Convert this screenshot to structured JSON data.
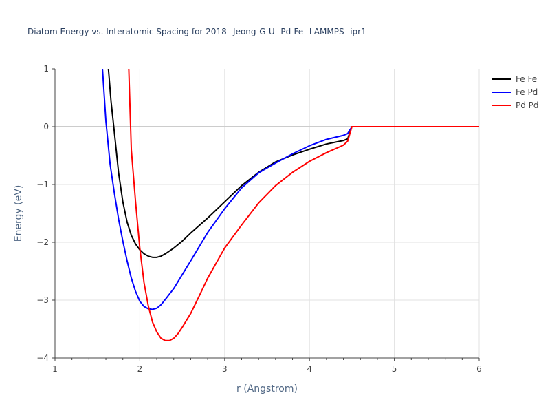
{
  "chart_data": {
    "type": "line",
    "title": "Diatom Energy vs. Interatomic Spacing for 2018--Jeong-G-U--Pd-Fe--LAMMPS--ipr1",
    "xlabel": "r (Angstrom)",
    "ylabel": "Energy (eV)",
    "xlim": [
      1,
      6
    ],
    "ylim": [
      -4,
      1
    ],
    "xticks": [
      1,
      2,
      3,
      4,
      5,
      6
    ],
    "yticks": [
      1,
      0,
      -1,
      -2,
      -3,
      -4
    ],
    "xtick_labels": [
      "1",
      "2",
      "3",
      "4",
      "5",
      "6"
    ],
    "ytick_labels": [
      "1",
      "0",
      "−1",
      "−2",
      "−3",
      "−4"
    ],
    "grid": true,
    "legend_position": "top-right",
    "series": [
      {
        "name": "Fe Fe",
        "color": "#000000",
        "x": [
          1.63,
          1.66,
          1.7,
          1.75,
          1.8,
          1.85,
          1.9,
          1.95,
          2.0,
          2.05,
          2.1,
          2.15,
          2.2,
          2.25,
          2.3,
          2.4,
          2.5,
          2.6,
          2.8,
          3.0,
          3.2,
          3.4,
          3.6,
          3.8,
          4.0,
          4.2,
          4.4,
          4.45,
          4.5,
          5.0,
          5.5,
          6.0
        ],
        "y": [
          1.0,
          0.45,
          -0.1,
          -0.8,
          -1.3,
          -1.65,
          -1.88,
          -2.03,
          -2.13,
          -2.2,
          -2.24,
          -2.26,
          -2.26,
          -2.24,
          -2.2,
          -2.1,
          -1.98,
          -1.84,
          -1.58,
          -1.3,
          -1.02,
          -0.79,
          -0.61,
          -0.49,
          -0.39,
          -0.3,
          -0.24,
          -0.21,
          0.0,
          0.0,
          0.0,
          0.0
        ]
      },
      {
        "name": "Fe Pd",
        "color": "#0000ff",
        "x": [
          1.56,
          1.6,
          1.65,
          1.7,
          1.75,
          1.8,
          1.85,
          1.9,
          1.95,
          2.0,
          2.05,
          2.1,
          2.15,
          2.2,
          2.25,
          2.3,
          2.4,
          2.5,
          2.6,
          2.8,
          3.0,
          3.2,
          3.4,
          3.6,
          3.8,
          4.0,
          4.2,
          4.4,
          4.45,
          4.5,
          5.0,
          5.5,
          6.0
        ],
        "y": [
          1.0,
          0.1,
          -0.65,
          -1.15,
          -1.6,
          -1.98,
          -2.32,
          -2.62,
          -2.85,
          -3.02,
          -3.11,
          -3.15,
          -3.16,
          -3.14,
          -3.08,
          -2.99,
          -2.8,
          -2.56,
          -2.32,
          -1.83,
          -1.42,
          -1.06,
          -0.8,
          -0.63,
          -0.47,
          -0.33,
          -0.22,
          -0.15,
          -0.12,
          0.0,
          0.0,
          0.0,
          0.0
        ]
      },
      {
        "name": "Pd Pd",
        "color": "#ff0000",
        "x": [
          1.87,
          1.9,
          1.95,
          2.0,
          2.05,
          2.1,
          2.15,
          2.2,
          2.25,
          2.3,
          2.35,
          2.4,
          2.45,
          2.5,
          2.6,
          2.7,
          2.8,
          3.0,
          3.2,
          3.4,
          3.6,
          3.8,
          4.0,
          4.2,
          4.4,
          4.45,
          4.5,
          5.0,
          5.5,
          6.0
        ],
        "y": [
          1.0,
          -0.4,
          -1.3,
          -2.1,
          -2.7,
          -3.1,
          -3.38,
          -3.55,
          -3.66,
          -3.7,
          -3.7,
          -3.66,
          -3.58,
          -3.47,
          -3.23,
          -2.93,
          -2.62,
          -2.1,
          -1.7,
          -1.32,
          -1.02,
          -0.79,
          -0.6,
          -0.45,
          -0.32,
          -0.25,
          0.0,
          0.0,
          0.0,
          0.0
        ]
      }
    ]
  }
}
